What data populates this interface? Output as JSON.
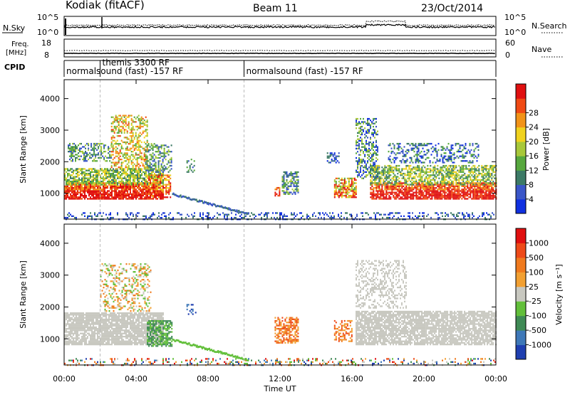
{
  "header": {
    "radar": "Kodiak (fitACF)",
    "beam": "Beam 11",
    "date": "23/Oct/2014"
  },
  "status_panels": {
    "nsky_label": "N.Sky",
    "nsearch_label": "N.Search",
    "noise_ticks_left": [
      "10^5",
      "10^0"
    ],
    "noise_ticks_right": [
      "10^5",
      "10^0"
    ],
    "freq_label_1": "Freq.",
    "freq_label_2": "[MHz]",
    "freq_ticks": [
      "18",
      "8"
    ],
    "nave_label": "Nave",
    "nave_ticks": [
      "60",
      "0"
    ],
    "cpid_label": "CPID",
    "cpid_segments": [
      {
        "text": "normalsound (fast) -157 RF",
        "start_hour": 0
      },
      {
        "text": "themis 3300 RF",
        "start_hour": 2
      },
      {
        "text": "normalsound (fast) -157 RF",
        "start_hour": 10
      }
    ]
  },
  "chart_data": [
    {
      "type": "heatmap",
      "panel": "power",
      "ylabel": "Slant Range [km]",
      "xlabel": "Time UT",
      "x_ticks": [
        "00:00",
        "04:00",
        "08:00",
        "12:00",
        "16:00",
        "20:00",
        "00:00"
      ],
      "xlim_hours": [
        0,
        24
      ],
      "y_ticks": [
        1000,
        2000,
        3000,
        4000
      ],
      "ylim_km": [
        180,
        4600
      ],
      "colorbar_label": "Power [dB]",
      "colorbar_ticks": [
        "4",
        "8",
        "12",
        "16",
        "20",
        "24",
        "28"
      ],
      "colorbar_colors": [
        "#1030e0",
        "#3a56c8",
        "#3c7a66",
        "#57a83e",
        "#a8c83a",
        "#f0d21e",
        "#f29318",
        "#f04a14",
        "#e01010"
      ]
    },
    {
      "type": "heatmap",
      "panel": "velocity",
      "ylabel": "Slant Range [km]",
      "xlabel": "Time UT",
      "x_ticks": [
        "00:00",
        "04:00",
        "08:00",
        "12:00",
        "16:00",
        "20:00",
        "00:00"
      ],
      "xlim_hours": [
        0,
        24
      ],
      "y_ticks": [
        1000,
        2000,
        3000,
        4000
      ],
      "ylim_km": [
        180,
        4600
      ],
      "colorbar_label": "Velocity [m s⁻¹]",
      "colorbar_ticks": [
        "1000",
        "500",
        "100",
        "25",
        "-25",
        "-100",
        "-500",
        "-1000"
      ],
      "colorbar_colors": [
        "#1f3fb0",
        "#3e78b8",
        "#3f8a55",
        "#62bf3a",
        "#c8c8c0",
        "#f2a032",
        "#f07a1e",
        "#ee4a18",
        "#e01010"
      ]
    }
  ]
}
